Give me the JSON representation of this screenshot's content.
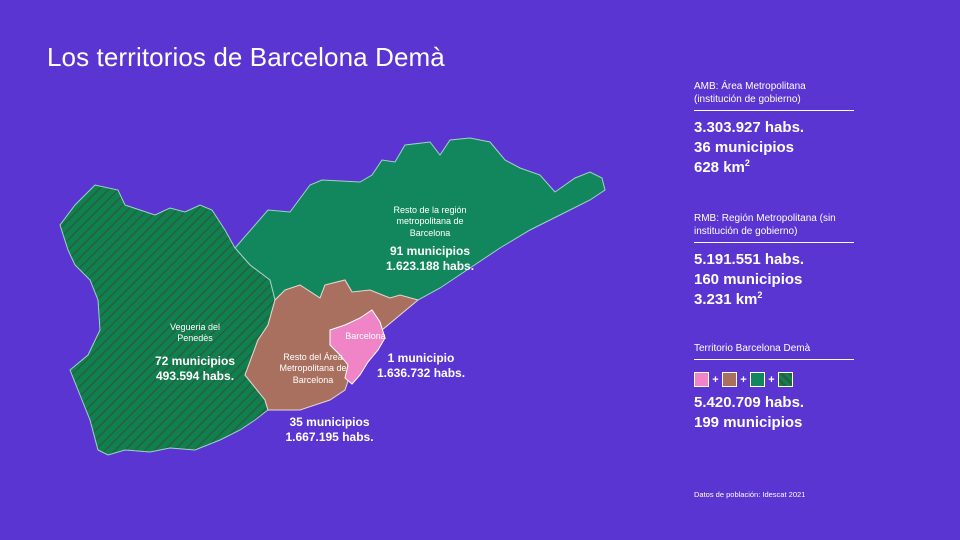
{
  "title": "Los territorios de Barcelona Demà",
  "colors": {
    "background": "#5a35d1",
    "resto_region": "#12875d",
    "vegueria": "#0f8050",
    "resto_amb": "#a9705f",
    "barcelona": "#ef85c7"
  },
  "map": {
    "resto_region": {
      "name": "Resto de la región metropolitana de Barcelona",
      "municipios": "91 municipios",
      "habs": "1.623.188 habs."
    },
    "vegueria": {
      "name": "Vegueria del Penedès",
      "municipios": "72 municipios",
      "habs": "493.594 habs."
    },
    "resto_amb": {
      "name": "Resto del Área Metropolitana de Barcelona",
      "municipios": "35 municipios",
      "habs": "1.667.195 habs."
    },
    "barcelona": {
      "name": "Barcelona",
      "municipios": "1 municipio",
      "habs": "1.636.732 habs."
    }
  },
  "panel": {
    "amb": {
      "heading": "AMB: Área Metropolitana (institución de gobierno)",
      "habs": "3.303.927 habs.",
      "municipios": "36 municipios",
      "area": "628 km",
      "area_sup": "2"
    },
    "rmb": {
      "heading": "RMB: Región Metropolitana (sin institución de gobierno)",
      "habs": "5.191.551 habs.",
      "municipios": "160 municipios",
      "area": "3.231 km",
      "area_sup": "2"
    },
    "territorio": {
      "heading": "Territorio Barcelona Demà",
      "plus": "+",
      "habs": "5.420.709 habs.",
      "municipios": "199 municipios"
    }
  },
  "source": "Datos de población: Idescat 2021"
}
